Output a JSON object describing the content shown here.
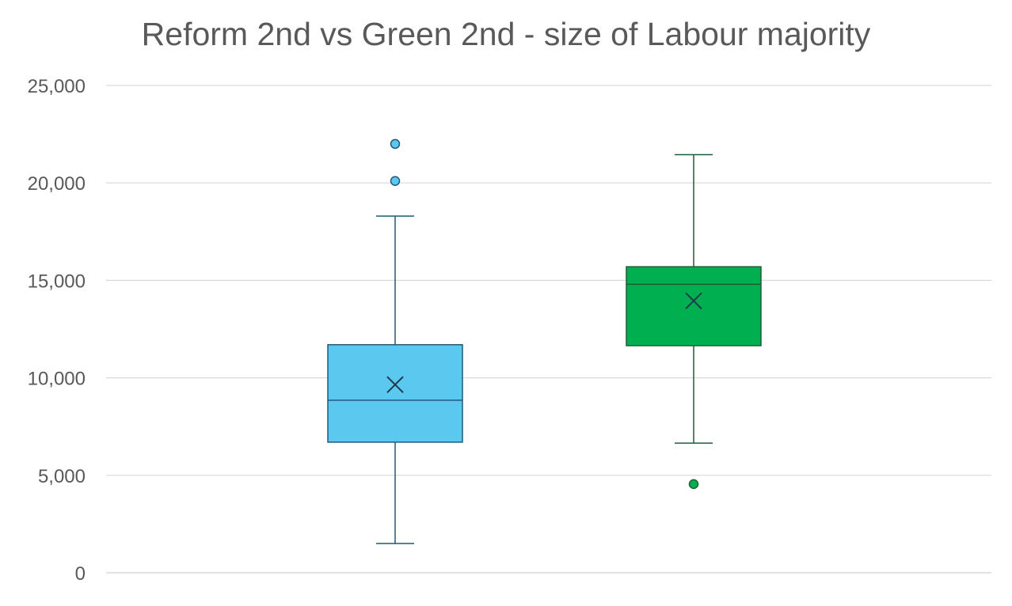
{
  "chart_data": {
    "type": "box",
    "title": "Reform 2nd vs Green 2nd - size of Labour majority",
    "xlabel": "",
    "ylabel": "",
    "ylim": [
      0,
      25000
    ],
    "y_ticks": [
      0,
      5000,
      10000,
      15000,
      20000,
      25000
    ],
    "y_tick_labels": [
      "0",
      "5,000",
      "10,000",
      "15,000",
      "20,000",
      "25,000"
    ],
    "grid": true,
    "legend": "none",
    "series": [
      {
        "color": "#5BC8F0",
        "edge_color": "#1F5A78",
        "whisker_low": 1500,
        "q1": 6700,
        "median": 8850,
        "q3": 11700,
        "whisker_high": 18300,
        "mean": 9650,
        "outliers": [
          20100,
          22000
        ]
      },
      {
        "color": "#00B050",
        "edge_color": "#1E5E36",
        "whisker_low": 6650,
        "q1": 11650,
        "median": 14800,
        "q3": 15700,
        "whisker_high": 21450,
        "mean": 13950,
        "outliers": [
          4550
        ]
      }
    ]
  }
}
